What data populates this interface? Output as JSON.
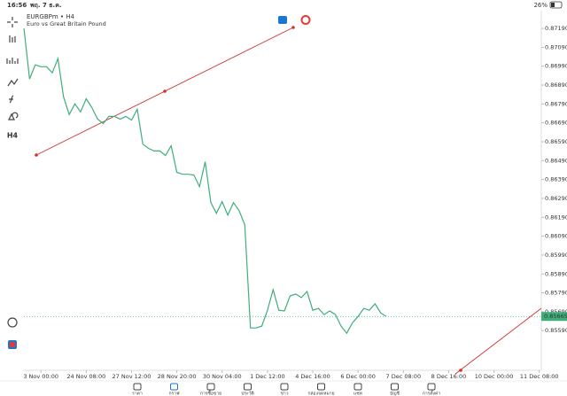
{
  "status_bar": {
    "time": "16:56",
    "date": "พฤ. 7 ธ.ค.",
    "battery": "26%"
  },
  "toolbar": {
    "timeframe": "H4"
  },
  "chart": {
    "type": "line",
    "symbol": "EURGBPm • H4",
    "description": "Euro vs Great Britain Pound",
    "series": [
      {
        "color": "#3fae7b",
        "values": [
          0.8719,
          0.86922,
          0.86997,
          0.86987,
          0.86987,
          0.86955,
          0.8703,
          0.86828,
          0.86734,
          0.8679,
          0.86748,
          0.86818,
          0.86771,
          0.8671,
          0.86686,
          0.86724,
          0.86724,
          0.8671,
          0.86724,
          0.86705,
          0.86762,
          0.86578,
          0.86555,
          0.86541,
          0.86541,
          0.86517,
          0.86569,
          0.86428,
          0.86418,
          0.86418,
          0.86414,
          0.86352,
          0.86484,
          0.86268,
          0.86211,
          0.86273,
          0.86202,
          0.86268,
          0.86225,
          0.8615,
          0.85604,
          0.85604,
          0.85614,
          0.85698,
          0.85807,
          0.85698,
          0.85694,
          0.85774,
          0.85784,
          0.85765,
          0.85797,
          0.85698,
          0.85708,
          0.85675,
          0.85694,
          0.85675,
          0.85614,
          0.85576,
          0.85632,
          0.85665,
          0.85708,
          0.85698,
          0.85732,
          0.85684,
          0.85665
        ]
      }
    ],
    "current_price": 0.85665,
    "ylim": [
      0.8538,
      0.8727
    ],
    "yticks": [
      {
        "value": 0.8719,
        "label": "0.87190"
      },
      {
        "value": 0.8709,
        "label": "0.87090"
      },
      {
        "value": 0.8699,
        "label": "0.86990"
      },
      {
        "value": 0.8689,
        "label": "0.86890"
      },
      {
        "value": 0.8679,
        "label": "0.86790"
      },
      {
        "value": 0.8669,
        "label": "0.86690"
      },
      {
        "value": 0.8659,
        "label": "0.86590"
      },
      {
        "value": 0.8649,
        "label": "0.86490"
      },
      {
        "value": 0.8639,
        "label": "0.86390"
      },
      {
        "value": 0.8629,
        "label": "0.86290"
      },
      {
        "value": 0.8619,
        "label": "0.86190"
      },
      {
        "value": 0.8609,
        "label": "0.86090"
      },
      {
        "value": 0.8599,
        "label": "0.85990"
      },
      {
        "value": 0.8589,
        "label": "0.85890"
      },
      {
        "value": 0.8579,
        "label": "0.85790"
      },
      {
        "value": 0.8569,
        "label": "0.85690"
      },
      {
        "value": 0.8559,
        "label": "0.85590"
      }
    ],
    "xlim": [
      0,
      91.2
    ],
    "xticks": [
      {
        "value": 3,
        "label": "3 Nov 00:00"
      },
      {
        "value": 11,
        "label": "24 Nov 08:00"
      },
      {
        "value": 19,
        "label": "27 Nov 12:00"
      },
      {
        "value": 27,
        "label": "28 Nov 20:00"
      },
      {
        "value": 35,
        "label": "30 Nov 04:00"
      },
      {
        "value": 43,
        "label": "1 Dec 12:00"
      },
      {
        "value": 51,
        "label": "4 Dec 16:00"
      },
      {
        "value": 59,
        "label": "6 Dec 00:00"
      },
      {
        "value": 67,
        "label": "7 Dec 08:00"
      },
      {
        "value": 75,
        "label": "8 Dec 16:00"
      },
      {
        "value": 83,
        "label": "10 Dec 00:00"
      },
      {
        "value": 91,
        "label": "11 Dec 08:00"
      }
    ]
  },
  "nav": [
    {
      "label": "ราคา"
    },
    {
      "label": "กราฟ",
      "active": true
    },
    {
      "label": "การซื้อขาย"
    },
    {
      "label": "ประวัติ"
    },
    {
      "label": "ข่าว"
    },
    {
      "label": "กล่องจดหมาย"
    },
    {
      "label": "แชท"
    },
    {
      "label": "บัญชี"
    },
    {
      "label": "การตั้งค่า"
    }
  ]
}
